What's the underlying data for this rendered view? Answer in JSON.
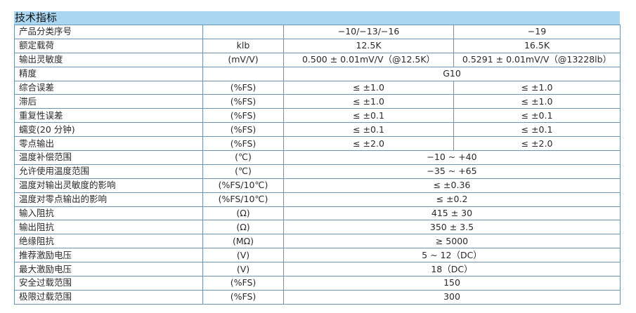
{
  "title": "技术指标",
  "rows": [
    {
      "label": "产品分类序号",
      "unit": "",
      "v1": "−10/−13/−16",
      "v2": "−19"
    },
    {
      "label": "额定载荷",
      "unit": "klb",
      "v1": "12.5K",
      "v2": "16.5K"
    },
    {
      "label": "输出灵敏度",
      "unit": "(mV/V)",
      "v1": "0.500 ± 0.01mV/V（@12.5K）",
      "v2": "0.5291 ± 0.01mV/V（@13228lb）"
    },
    {
      "label": "精度",
      "unit": "",
      "v": "G10"
    },
    {
      "label": "综合误差",
      "unit": "(%FS)",
      "v1": "≤ ±1.0",
      "v2": "≤ ±1.0"
    },
    {
      "label": "滞后",
      "unit": "(%FS)",
      "v1": "≤ ±1.0",
      "v2": "≤ ±1.0"
    },
    {
      "label": "重复性误差",
      "unit": "(%FS)",
      "v1": "≤ ±0.1",
      "v2": "≤ ±0.1"
    },
    {
      "label": "蠕变(20 分钟)",
      "unit": "(%FS)",
      "v1": "≤ ±0.1",
      "v2": "≤ ±0.1"
    },
    {
      "label": "零点输出",
      "unit": "(%FS)",
      "v1": "≤ ±2.0",
      "v2": "≤ ±2.0"
    },
    {
      "label": "温度补偿范围",
      "unit": "(℃)",
      "v": "−10 ~ +40"
    },
    {
      "label": "允许使用温度范围",
      "unit": "(℃)",
      "v": "−35 ~ +65"
    },
    {
      "label": "温度对输出灵敏度的影响",
      "unit": "(%FS/10℃)",
      "v": "≤ ±0.36"
    },
    {
      "label": "温度对零点输出的影响",
      "unit": "(%FS/10℃)",
      "v": "≤ ±0.2"
    },
    {
      "label": "输入阻抗",
      "unit": "(Ω)",
      "v": "415 ± 30"
    },
    {
      "label": "输出阻抗",
      "unit": "(Ω)",
      "v": "350 ± 3.5"
    },
    {
      "label": "绝缘阻抗",
      "unit": "(MΩ)",
      "v": "≥ 5000"
    },
    {
      "label": "推荐激励电压",
      "unit": "(V)",
      "v": "5 ~ 12（DC）"
    },
    {
      "label": "最大激励电压",
      "unit": "(V)",
      "v": "18（DC）"
    },
    {
      "label": "安全过载范围",
      "unit": "(%FS)",
      "v": "150"
    },
    {
      "label": "极限过载范围",
      "unit": "(%FS)",
      "v": "300"
    }
  ]
}
